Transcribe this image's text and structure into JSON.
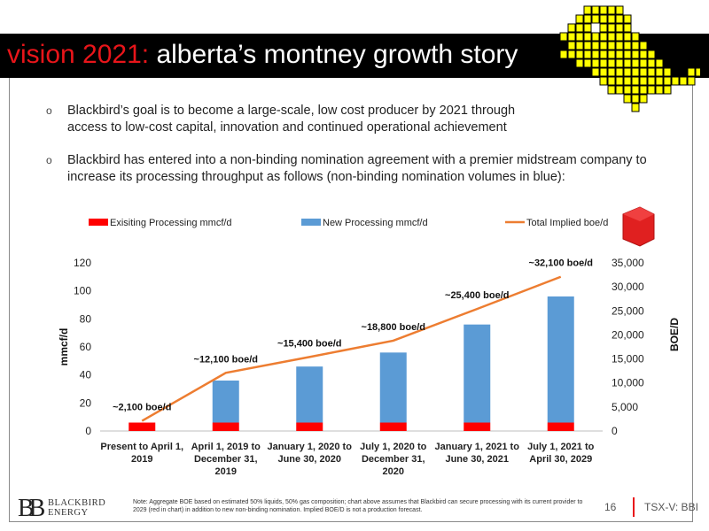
{
  "slide": {
    "title_accent": "vision 2021:",
    "title_main": "alberta’s montney growth story",
    "bullets": [
      {
        "marker": "o",
        "lines": [
          "Blackbird’s goal is to become a large-scale, low cost producer by 2021 through",
          "access to low-cost capital, innovation and continued operational achievement"
        ]
      },
      {
        "marker": "o",
        "lines": [
          "Blackbird has entered into a non-binding nomination agreement with a premier midstream company to",
          "increase its processing throughput as follows (non-binding nomination volumes in blue):"
        ]
      }
    ]
  },
  "chart_data": {
    "type": "bar",
    "categories": [
      [
        "Present to April 1,",
        "2019"
      ],
      [
        "April 1, 2019 to",
        "December 31,",
        "2019"
      ],
      [
        "January 1, 2020 to",
        "June 30, 2020"
      ],
      [
        "July 1, 2020 to",
        "December 31,",
        "2020"
      ],
      [
        "January 1, 2021 to",
        "June 30, 2021"
      ],
      [
        "July 1, 2021 to",
        "April 30, 2029"
      ]
    ],
    "series": [
      {
        "name": "Exisiting Processing mmcf/d",
        "type": "bar",
        "axis": "left",
        "color": "#ff0000",
        "values": [
          6,
          6,
          6,
          6,
          6,
          6
        ]
      },
      {
        "name": "New Processing mmcf/d",
        "type": "bar",
        "axis": "left",
        "color": "#5b9bd5",
        "values": [
          0,
          30,
          40,
          50,
          70,
          90
        ]
      },
      {
        "name": "Total Implied boe/d",
        "type": "line",
        "axis": "right",
        "color": "#ed7d31",
        "values": [
          2100,
          12100,
          15400,
          18800,
          25400,
          32100
        ]
      }
    ],
    "data_labels": [
      "~2,100 boe/d",
      "~12,100 boe/d",
      "~15,400 boe/d",
      "~18,800 boe/d",
      "~25,400 boe/d",
      "~32,100 boe/d"
    ],
    "ylabel": "mmcf/d",
    "y2label": "BOE/D",
    "ylim": [
      0,
      120
    ],
    "y2lim": [
      0,
      35000
    ],
    "yticks": [
      0,
      20,
      40,
      60,
      80,
      100,
      120
    ],
    "y2ticks": [
      "0",
      "5,000",
      "10,000",
      "15,000",
      "20,000",
      "25,000",
      "30,000",
      "35,000"
    ],
    "stacked": true,
    "grid": false,
    "legend_position": "top"
  },
  "footer": {
    "logo_mark": "BB",
    "logo_line1": "BLACKBIRD",
    "logo_line2": "ENERGY",
    "note": "Note: Aggregate BOE based on estimated 50% liquids, 50% gas composition; chart above assumes that Blackbird can secure processing with its current provider to 2029 (red in chart) in addition to new non-binding nomination. Implied BOE/D is not a production forecast.",
    "page_number": "16",
    "ticker": "TSX-V: BBI"
  },
  "colors": {
    "accent": "#e8151a",
    "title_bar": "#000000",
    "deco_yellow": "#ffff00"
  }
}
